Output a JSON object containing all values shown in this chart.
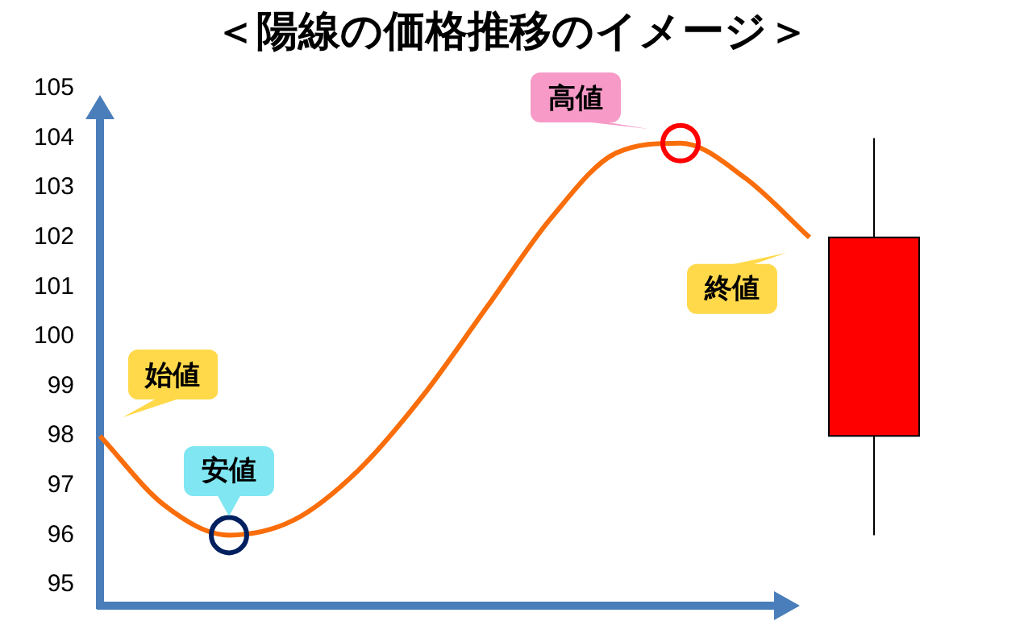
{
  "chart_data": {
    "type": "candlestick",
    "title": "＜陽線の価格推移のイメージ＞",
    "categories": [
      null,
      null,
      null,
      null,
      null,
      null,
      null,
      null,
      null,
      null,
      null,
      null,
      null
    ],
    "ohlc": [
      null,
      null,
      null,
      null,
      null,
      null,
      null,
      null,
      null,
      null,
      null,
      null,
      [
        98,
        104,
        96,
        102
      ]
    ],
    "color": "#ff0000",
    "series": [
      {
        "type": "line",
        "color": "#f96d0a",
        "values": [
          98,
          96.6,
          96.0,
          96.3,
          97.3,
          98.8,
          100.6,
          102.4,
          103.7,
          103.9,
          103.2,
          102.0,
          null
        ]
      }
    ],
    "ylim": [
      95,
      105
    ],
    "yticks": [
      95,
      96,
      97,
      98,
      99,
      100,
      101,
      102,
      103,
      104,
      105
    ],
    "tick_labels": "y",
    "grid": false,
    "marker": "none",
    "annotations": [
      "始値",
      "安値",
      "高値",
      "終値"
    ]
  }
}
